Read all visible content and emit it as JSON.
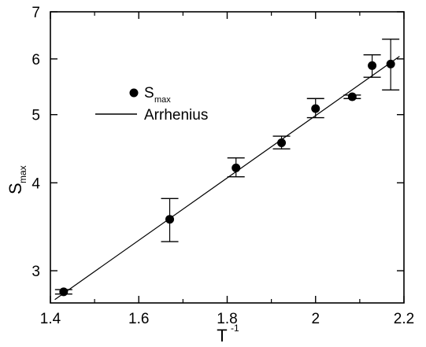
{
  "chart_data": {
    "type": "scatter",
    "x_axis": {
      "label_main": "T",
      "label_sup": "-1",
      "range": [
        1.4,
        2.2
      ],
      "ticks": [
        1.4,
        1.6,
        1.8,
        2.0,
        2.2
      ],
      "tick_labels": [
        "1.4",
        "1.6",
        "1.8",
        "2",
        "2.2"
      ]
    },
    "y_axis": {
      "label_main": "S",
      "label_sub": "max",
      "scale": "log",
      "range": [
        2.7,
        7.0
      ],
      "ticks": [
        3,
        4,
        5,
        6,
        7
      ],
      "tick_labels": [
        "3",
        "4",
        "5",
        "6",
        "7"
      ]
    },
    "grid": false,
    "legend": {
      "placement": "upper-left",
      "entries": [
        {
          "main": "S",
          "sub": "max",
          "marker": "circle"
        },
        {
          "main": "Arrhenius",
          "sub": "",
          "marker": "line"
        }
      ]
    },
    "series": [
      {
        "kind": "points-with-errorbars",
        "points": [
          {
            "x": 1.43,
            "y": 2.8,
            "ylo": 2.78,
            "yhi": 2.82
          },
          {
            "x": 1.67,
            "y": 3.55,
            "ylo": 3.3,
            "yhi": 3.8
          },
          {
            "x": 1.82,
            "y": 4.2,
            "ylo": 4.08,
            "yhi": 4.34
          },
          {
            "x": 1.923,
            "y": 4.56,
            "ylo": 4.47,
            "yhi": 4.66
          },
          {
            "x": 2.0,
            "y": 5.1,
            "ylo": 4.95,
            "yhi": 5.27
          },
          {
            "x": 2.083,
            "y": 5.3,
            "ylo": 5.27,
            "yhi": 5.33
          },
          {
            "x": 2.128,
            "y": 5.87,
            "ylo": 5.65,
            "yhi": 6.08
          },
          {
            "x": 2.17,
            "y": 5.9,
            "ylo": 5.42,
            "yhi": 6.4
          }
        ]
      },
      {
        "kind": "fit-line",
        "x": [
          1.41,
          2.19
        ],
        "y": [
          2.73,
          6.05
        ]
      }
    ]
  }
}
